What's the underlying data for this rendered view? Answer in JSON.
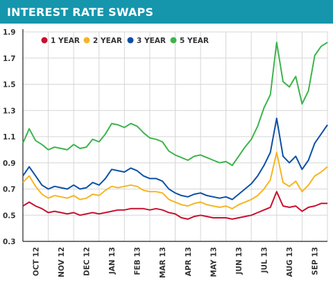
{
  "title": "INTEREST RATE SWAPS",
  "chart_data": {
    "type": "line",
    "title": "INTEREST RATE SWAPS",
    "xlabel": "",
    "ylabel": "",
    "ylim": [
      0.3,
      1.9
    ],
    "y_ticks": [
      "1.9",
      "1.7",
      "1.5",
      "1.3",
      "1.1",
      "0.9",
      "0.7",
      "0.5",
      "0.3"
    ],
    "x_ticks": [
      "OCT 12",
      "NOV 12",
      "DEC 12",
      "JAN 13",
      "FEB 13",
      "MAR 13",
      "APR 13",
      "MAY 13",
      "JUN 13",
      "JUL 13",
      "AUG 13",
      "SEP 13"
    ],
    "grid": true,
    "legend_position": "top-left",
    "colors": {
      "title_bar": "#1596ad",
      "grid": "#d6d6d6",
      "axis": "#222222"
    },
    "x": [
      0,
      0.25,
      0.5,
      0.75,
      1,
      1.25,
      1.5,
      1.75,
      2,
      2.25,
      2.5,
      2.75,
      3,
      3.25,
      3.5,
      3.75,
      4,
      4.25,
      4.5,
      4.75,
      5,
      5.25,
      5.5,
      5.75,
      6,
      6.25,
      6.5,
      6.75,
      7,
      7.25,
      7.5,
      7.75,
      8,
      8.25,
      8.5,
      8.75,
      9,
      9.25,
      9.5,
      9.75,
      10,
      10.25,
      10.5,
      10.75,
      11,
      11.25,
      11.5,
      11.75,
      12
    ],
    "series": [
      {
        "name": "1 YEAR",
        "color": "#c8102e",
        "values": [
          0.57,
          0.6,
          0.57,
          0.55,
          0.52,
          0.53,
          0.52,
          0.51,
          0.52,
          0.5,
          0.51,
          0.52,
          0.51,
          0.52,
          0.53,
          0.54,
          0.54,
          0.55,
          0.55,
          0.55,
          0.54,
          0.55,
          0.54,
          0.52,
          0.51,
          0.48,
          0.47,
          0.49,
          0.5,
          0.49,
          0.48,
          0.48,
          0.48,
          0.47,
          0.48,
          0.49,
          0.5,
          0.52,
          0.54,
          0.56,
          0.68,
          0.57,
          0.56,
          0.57,
          0.53,
          0.56,
          0.57,
          0.59,
          0.59
        ]
      },
      {
        "name": "2 YEAR",
        "color": "#f6b521",
        "values": [
          0.75,
          0.8,
          0.72,
          0.66,
          0.63,
          0.65,
          0.64,
          0.63,
          0.65,
          0.62,
          0.63,
          0.66,
          0.65,
          0.69,
          0.72,
          0.71,
          0.72,
          0.73,
          0.72,
          0.69,
          0.68,
          0.68,
          0.67,
          0.62,
          0.6,
          0.58,
          0.57,
          0.59,
          0.6,
          0.58,
          0.57,
          0.56,
          0.57,
          0.55,
          0.58,
          0.6,
          0.62,
          0.65,
          0.7,
          0.77,
          0.98,
          0.75,
          0.72,
          0.76,
          0.68,
          0.73,
          0.8,
          0.83,
          0.87
        ]
      },
      {
        "name": "3 YEAR",
        "color": "#0a4fa6",
        "values": [
          0.8,
          0.87,
          0.8,
          0.73,
          0.7,
          0.72,
          0.71,
          0.7,
          0.73,
          0.7,
          0.71,
          0.75,
          0.73,
          0.78,
          0.85,
          0.84,
          0.83,
          0.86,
          0.84,
          0.8,
          0.78,
          0.78,
          0.76,
          0.7,
          0.67,
          0.65,
          0.64,
          0.66,
          0.67,
          0.65,
          0.64,
          0.63,
          0.64,
          0.62,
          0.66,
          0.7,
          0.74,
          0.8,
          0.88,
          0.98,
          1.24,
          0.95,
          0.9,
          0.95,
          0.85,
          0.92,
          1.05,
          1.12,
          1.19
        ]
      },
      {
        "name": "5 YEAR",
        "color": "#3cb44b",
        "values": [
          1.05,
          1.16,
          1.07,
          1.04,
          1.0,
          1.02,
          1.01,
          1.0,
          1.04,
          1.01,
          1.02,
          1.08,
          1.06,
          1.12,
          1.2,
          1.19,
          1.17,
          1.2,
          1.18,
          1.13,
          1.09,
          1.08,
          1.06,
          0.99,
          0.96,
          0.94,
          0.92,
          0.95,
          0.96,
          0.94,
          0.92,
          0.9,
          0.91,
          0.88,
          0.95,
          1.02,
          1.08,
          1.18,
          1.32,
          1.42,
          1.82,
          1.52,
          1.48,
          1.56,
          1.35,
          1.45,
          1.72,
          1.79,
          1.82
        ]
      }
    ]
  }
}
